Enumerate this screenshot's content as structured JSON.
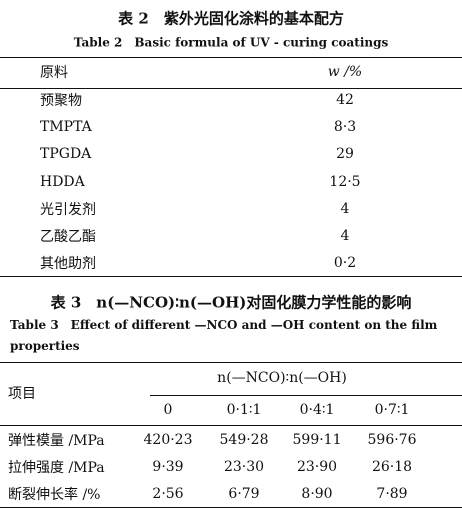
{
  "table2": {
    "title": "表 2　紫外光固化涂料的基本配方",
    "subtitle": "Table 2　Basic formula of UV - curing coatings",
    "header": [
      "原料",
      "w /%"
    ],
    "rows": [
      [
        "预聚物",
        "42"
      ],
      [
        "TMPTA",
        "8·3"
      ],
      [
        "TPGDA",
        "29"
      ],
      [
        "HDDA",
        "12·5"
      ],
      [
        "光引发剂",
        "4"
      ],
      [
        "乙酸乙酯",
        "4"
      ],
      [
        "其他助剂",
        "0·2"
      ]
    ]
  },
  "table3": {
    "title": "表 3　n(—NCO)∶n(—OH)对固化膜力学性能的影响",
    "subtitle": "Table 3　Effect of different —NCO and —OH content on the film properties",
    "row_header": "项目",
    "group_header": "n(—NCO)∶n(—OH)",
    "columns": [
      "0",
      "0·1∶1",
      "0·4∶1",
      "0·7∶1"
    ],
    "rows": [
      [
        "弹性模量 /MPa",
        "420·23",
        "549·28",
        "599·11",
        "596·76"
      ],
      [
        "拉伸强度 /MPa",
        "9·39",
        "23·30",
        "23·90",
        "26·18"
      ],
      [
        "断裂伸长率 /%",
        "2·56",
        "6·79",
        "8·90",
        "7·89"
      ]
    ]
  }
}
